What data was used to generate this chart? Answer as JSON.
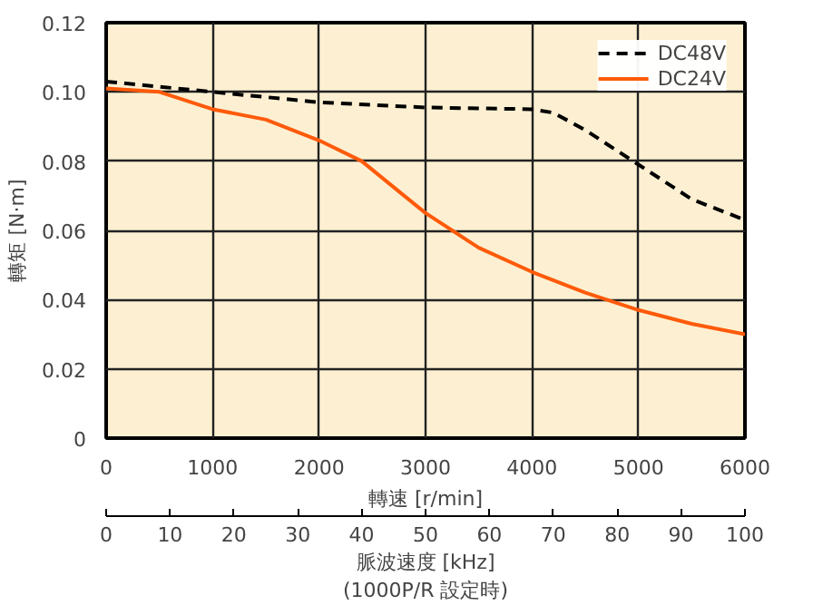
{
  "chart_data": {
    "type": "line",
    "xlabel": "轉速 [r/min]",
    "ylabel": "轉矩 [N·m]",
    "x2label": "脈波速度 [kHz]\n(1000P/R 設定時)",
    "xlim": [
      0,
      6000
    ],
    "xticks": [
      0,
      1000,
      2000,
      3000,
      4000,
      5000,
      6000
    ],
    "ylim": [
      0,
      0.12
    ],
    "yticks": [
      0,
      {
        "value": 0.02,
        "label": "0.02"
      },
      {
        "value": 0.04,
        "label": "0.04"
      },
      {
        "value": 0.06,
        "label": "0.06"
      },
      {
        "value": 0.08,
        "label": "0.08"
      },
      {
        "value": 0.1,
        "label": "0.10"
      },
      {
        "value": 0.12,
        "label": "0.12"
      }
    ],
    "x2lim": [
      0,
      100
    ],
    "x2ticks": [
      0,
      10,
      20,
      30,
      40,
      50,
      60,
      70,
      80,
      90,
      100
    ],
    "grid": true,
    "legend": "top right",
    "marker": "none",
    "series": [
      {
        "name": "DC48V",
        "color": "#000000",
        "line_style": "dashed",
        "x": [
          0,
          1000,
          2000,
          3000,
          4000,
          4200,
          4500,
          5000,
          5500,
          6000
        ],
        "values": [
          0.103,
          0.1,
          0.097,
          0.0955,
          0.095,
          0.094,
          0.089,
          0.079,
          0.069,
          0.063
        ]
      },
      {
        "name": "DC24V",
        "color": "#ff5a0a",
        "line_style": "solid",
        "x": [
          0,
          500,
          1000,
          1500,
          2000,
          2400,
          2800,
          3000,
          3500,
          4000,
          4500,
          5000,
          5500,
          6000
        ],
        "values": [
          0.101,
          0.1,
          0.095,
          0.092,
          0.086,
          0.08,
          0.07,
          0.065,
          0.055,
          0.048,
          0.042,
          0.037,
          0.033,
          0.03
        ]
      }
    ]
  }
}
